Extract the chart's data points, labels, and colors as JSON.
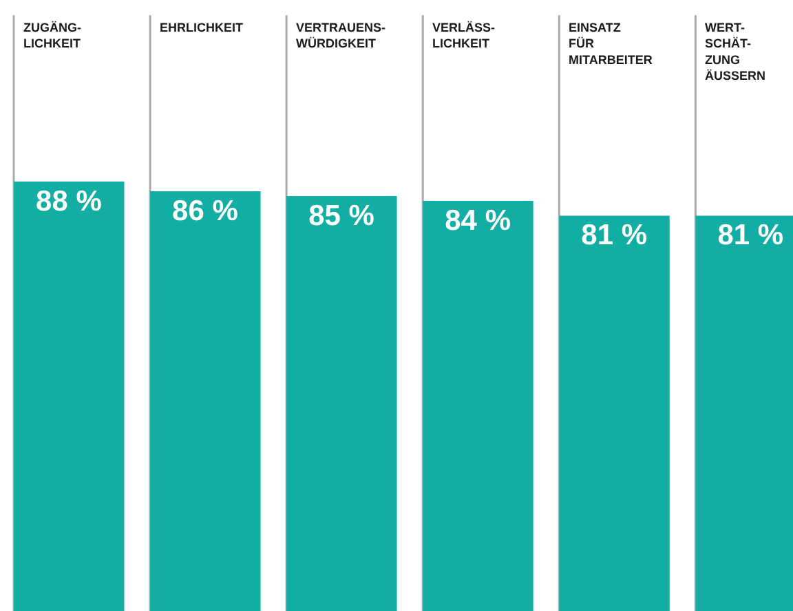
{
  "chart_data": {
    "type": "bar",
    "categories": [
      "ZUGÄNG-\nLICHKEIT",
      "EHRLICHKEIT",
      "VERTRAUENS-\nWÜRDIGKEIT",
      "VERLÄSS-\nLICHKEIT",
      "EINSATZ\nFÜR\nMITARBEITER",
      "WERT-\nSCHÄT-\nZUNG\nÄUSSERN"
    ],
    "values": [
      88,
      86,
      85,
      84,
      81,
      81
    ],
    "value_labels": [
      "88 %",
      "86 %",
      "85 %",
      "84 %",
      "81 %",
      "81 %"
    ],
    "color": "#12aea3"
  }
}
